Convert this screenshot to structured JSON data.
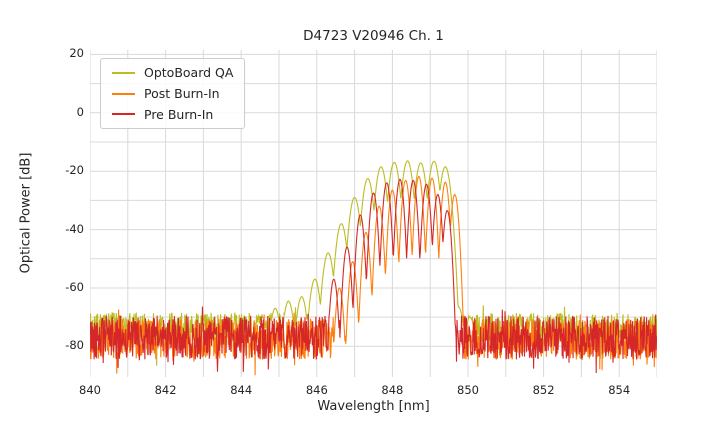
{
  "chart_data": {
    "type": "line",
    "title": "D4723 V20946 Ch. 1",
    "xlabel": "Wavelength [nm]",
    "ylabel": "Optical Power [dB]",
    "xlim": [
      840,
      855
    ],
    "ylim": [
      -90.5,
      21.5
    ],
    "x_ticks": [
      840,
      842,
      844,
      846,
      848,
      850,
      852,
      854
    ],
    "y_ticks": [
      20,
      0,
      -20,
      -40,
      -60,
      -80
    ],
    "x_grid_step": 1,
    "y_grid": [
      -80,
      -70,
      -60,
      -50,
      -40,
      -30,
      -20,
      -10,
      0,
      10,
      20
    ],
    "grid": true,
    "grid_color": "#d9d9d9",
    "legend_position": "upper-left",
    "series": [
      {
        "name": "OptoBoard QA",
        "color": "#bcbd22",
        "seed": 7,
        "noise_floor_db": {
          "mean": -73.5,
          "spread": 5,
          "spike": 9
        },
        "mode_spacing_nm": 0.35,
        "valley_drop_db": 13,
        "peaks": [
          [
            844.55,
            -70
          ],
          [
            844.9,
            -67
          ],
          [
            845.25,
            -64.5
          ],
          [
            845.6,
            -63
          ],
          [
            845.95,
            -57
          ],
          [
            846.3,
            -48
          ],
          [
            846.65,
            -38
          ],
          [
            847.0,
            -29
          ],
          [
            847.35,
            -22.5
          ],
          [
            847.7,
            -18.5
          ],
          [
            848.05,
            -17
          ],
          [
            848.4,
            -16.5
          ],
          [
            848.75,
            -17.2
          ],
          [
            849.1,
            -16.6
          ],
          [
            849.4,
            -18.5
          ],
          [
            849.75,
            -66.5
          ],
          [
            850.05,
            -70
          ]
        ]
      },
      {
        "name": "Post Burn-In",
        "color": "#ff7f0e",
        "seed": 13,
        "noise_floor_db": {
          "mean": -77.5,
          "spread": 7,
          "spike": 8
        },
        "mode_spacing_nm": 0.35,
        "valley_drop_db": 27,
        "peaks": [
          [
            846.6,
            -60
          ],
          [
            846.95,
            -51
          ],
          [
            847.3,
            -41
          ],
          [
            847.65,
            -32
          ],
          [
            848.0,
            -26.5
          ],
          [
            848.35,
            -23.2
          ],
          [
            848.7,
            -21.8
          ],
          [
            849.05,
            -22.4
          ],
          [
            849.4,
            -23.8
          ],
          [
            849.65,
            -28
          ]
        ]
      },
      {
        "name": "Pre Burn-In",
        "color": "#d62728",
        "seed": 42,
        "noise_floor_db": {
          "mean": -77,
          "spread": 7.5,
          "spike": 8
        },
        "mode_spacing_nm": 0.35,
        "valley_drop_db": 27,
        "peaks": [
          [
            846.45,
            -57
          ],
          [
            846.8,
            -46
          ],
          [
            847.15,
            -35
          ],
          [
            847.5,
            -27.5
          ],
          [
            847.85,
            -24
          ],
          [
            848.2,
            -22.8
          ],
          [
            848.55,
            -23.2
          ],
          [
            848.9,
            -24.5
          ],
          [
            849.2,
            -28
          ],
          [
            849.45,
            -33.5
          ]
        ]
      }
    ]
  }
}
